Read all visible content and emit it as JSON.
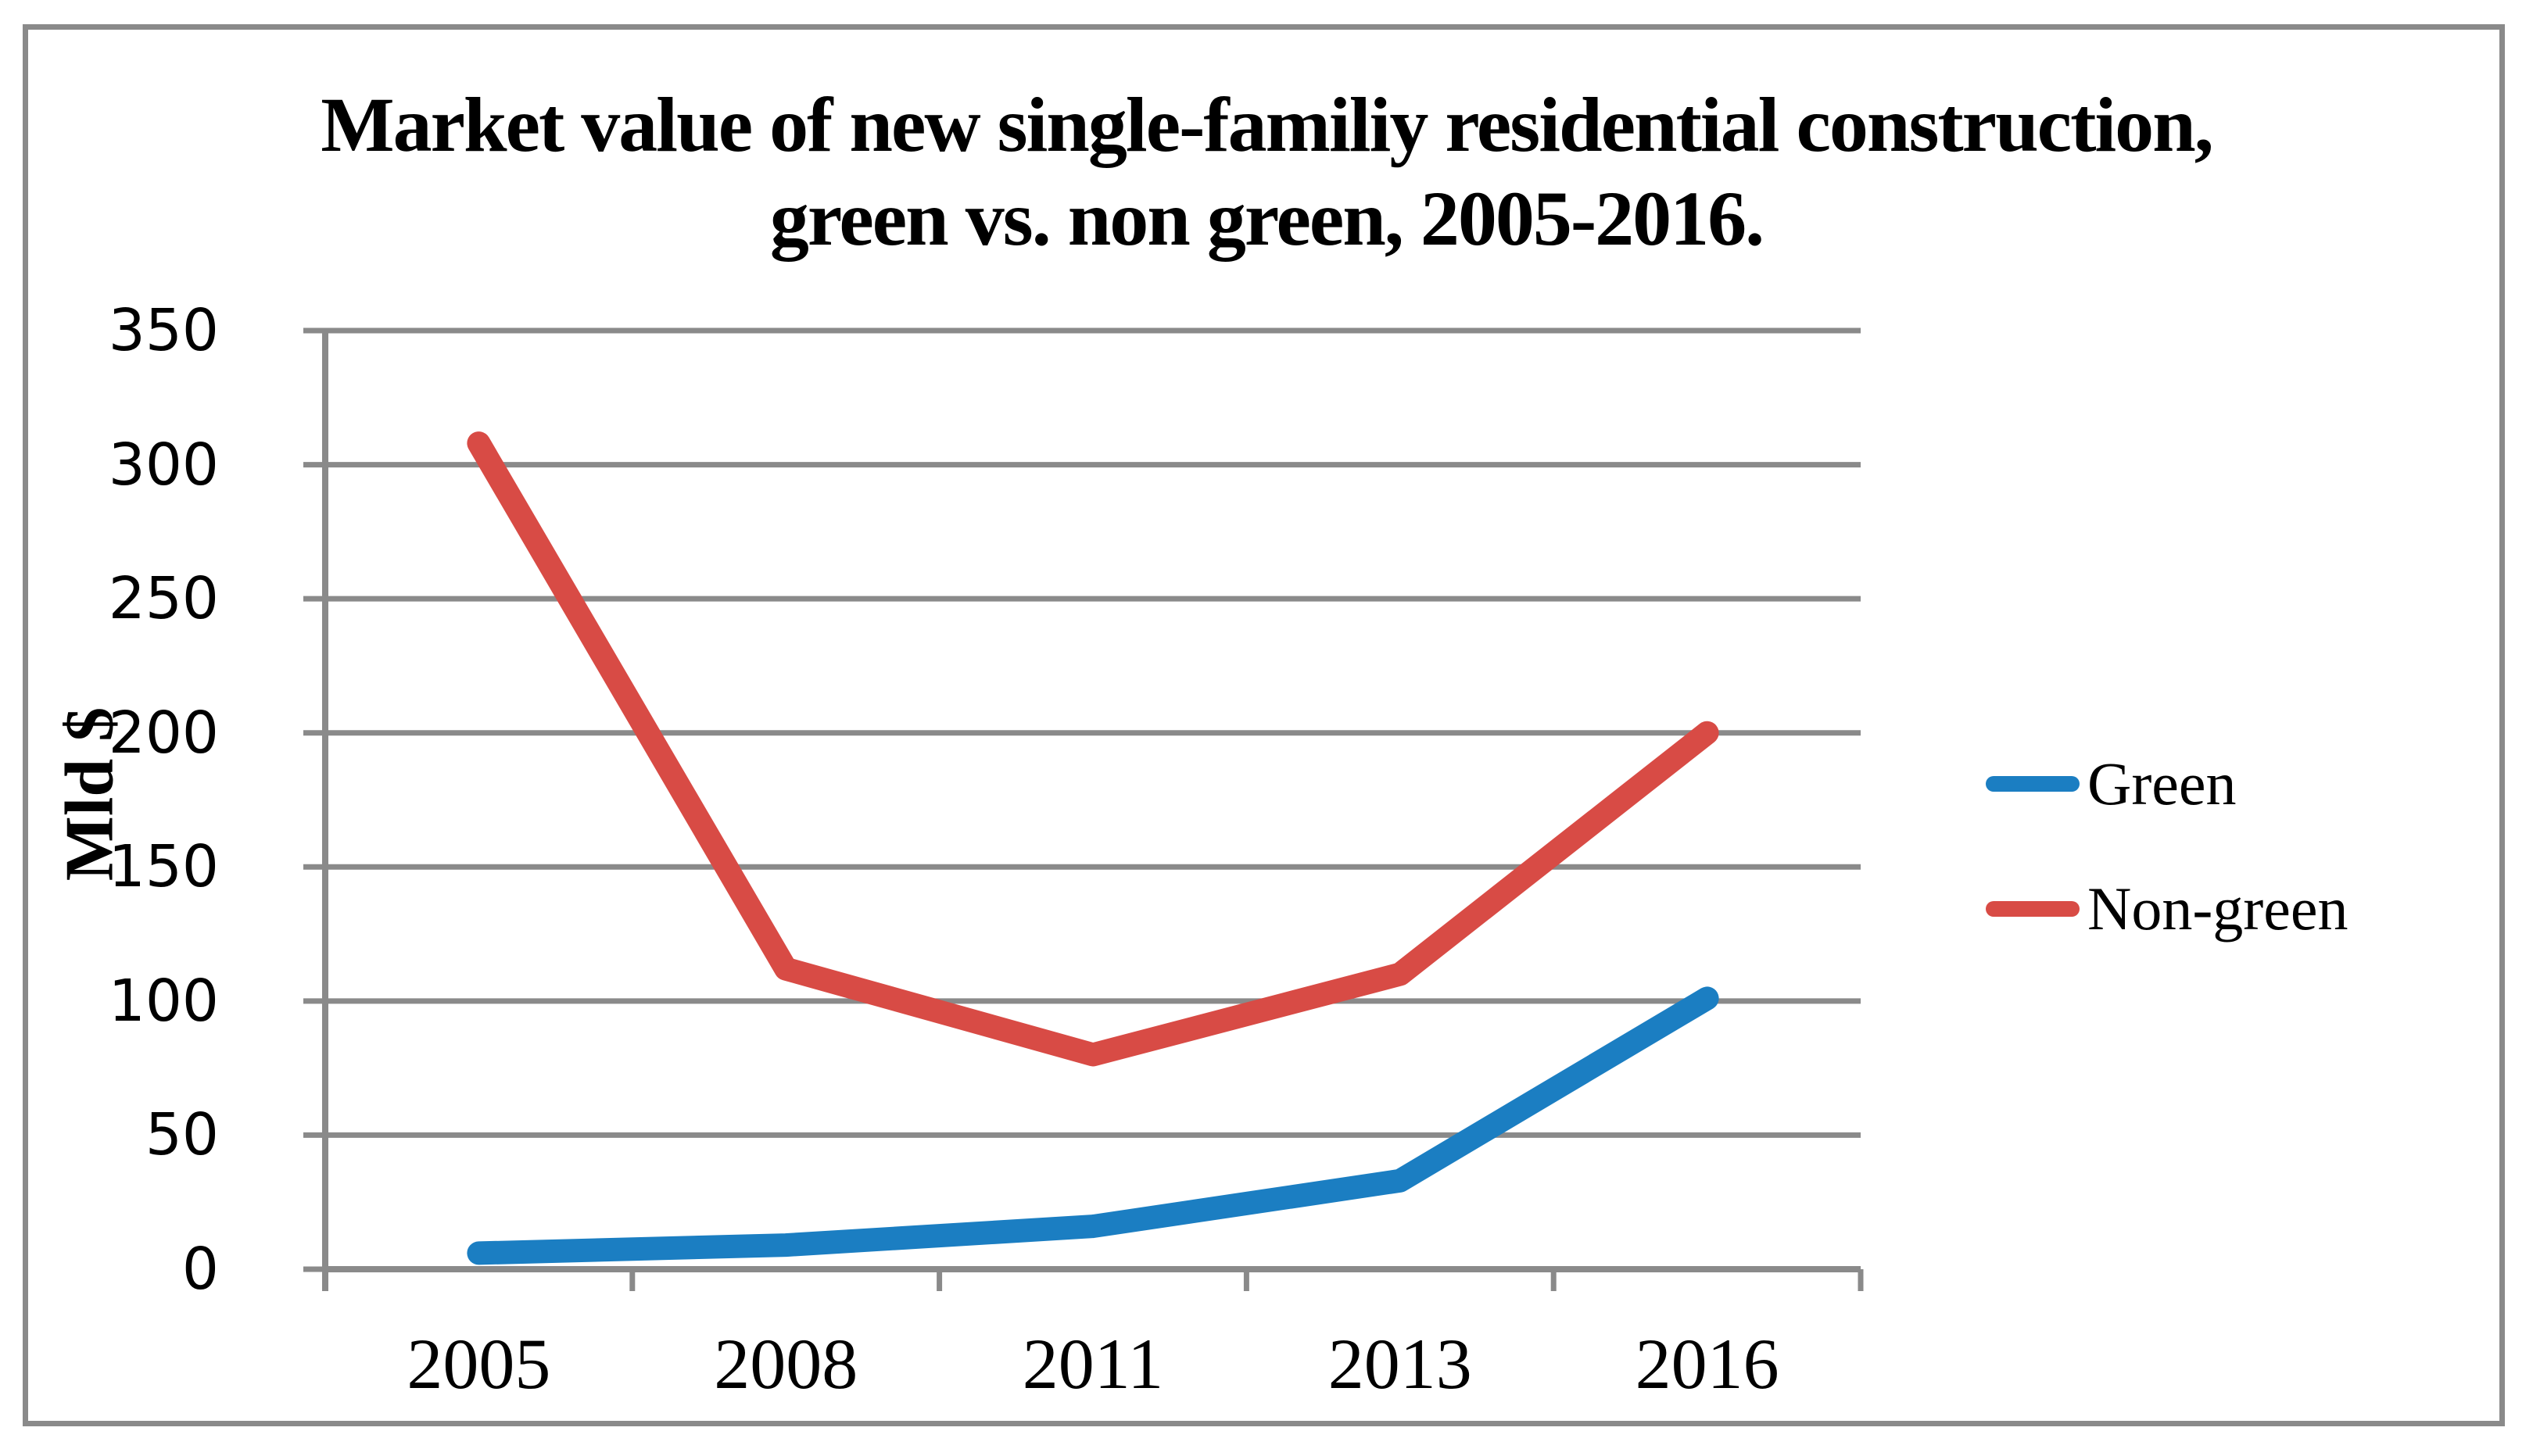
{
  "figure": {
    "title_line1": "Market value of new single-familiy residential construction,",
    "title_line2": "green vs. non green, 2005-2016.",
    "y_axis_label": "Mld $"
  },
  "legend": {
    "items": [
      {
        "label": "Green",
        "color": "#1B7EC2"
      },
      {
        "label": "Non-green",
        "color": "#D84B45"
      }
    ]
  },
  "chart_data": {
    "type": "line",
    "title": "Market value of new single-familiy residential construction, green vs. non green, 2005-2016.",
    "categories": [
      "2005",
      "2008",
      "2011",
      "2013",
      "2016"
    ],
    "series": [
      {
        "name": "Green",
        "color": "#1B7EC2",
        "values": [
          6,
          9,
          16,
          33,
          101
        ]
      },
      {
        "name": "Non-green",
        "color": "#D84B45",
        "values": [
          308,
          112,
          80,
          110,
          200
        ]
      }
    ],
    "xlabel": "",
    "ylabel": "Mld $",
    "ylim": [
      0,
      350
    ],
    "ytick_step": 50,
    "ytick_labels": [
      "0",
      "50",
      "100",
      "150",
      "200",
      "250",
      "300",
      "350"
    ],
    "grid": "horizontal",
    "legend_position": "right-center",
    "colors": {
      "gridline": "#8A8A8A",
      "axis": "#8A8A8A",
      "border": "#8A8A8A",
      "text": "#000000",
      "background": "#FFFFFF"
    }
  }
}
